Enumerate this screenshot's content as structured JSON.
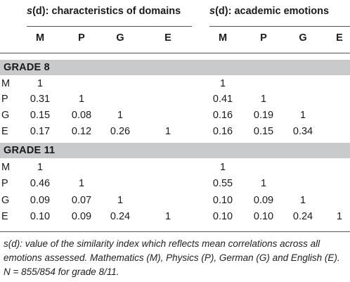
{
  "header": {
    "group1_prefix": "s",
    "group1_rest": "(d): characteristics of domains",
    "group2_prefix": "s",
    "group2_rest": "(d): academic emotions",
    "columns": [
      "M",
      "P",
      "G",
      "E"
    ]
  },
  "sections": [
    {
      "label": "GRADE 8",
      "rows": [
        {
          "label": "M",
          "a": [
            "1",
            "",
            "",
            ""
          ],
          "b": [
            "1",
            "",
            "",
            ""
          ]
        },
        {
          "label": "P",
          "a": [
            "0.31",
            "1",
            "",
            ""
          ],
          "b": [
            "0.41",
            "1",
            "",
            ""
          ]
        },
        {
          "label": "G",
          "a": [
            "0.15",
            "0.08",
            "1",
            ""
          ],
          "b": [
            "0.16",
            "0.19",
            "1",
            ""
          ]
        },
        {
          "label": "E",
          "a": [
            "0.17",
            "0.12",
            "0.26",
            "1"
          ],
          "b": [
            "0.16",
            "0.15",
            "0.34",
            ""
          ]
        }
      ]
    },
    {
      "label": "GRADE 11",
      "rows": [
        {
          "label": "M",
          "a": [
            "1",
            "",
            "",
            ""
          ],
          "b": [
            "1",
            "",
            "",
            ""
          ]
        },
        {
          "label": "P",
          "a": [
            "0.46",
            "1",
            "",
            ""
          ],
          "b": [
            "0.55",
            "1",
            "",
            ""
          ]
        },
        {
          "label": "G",
          "a": [
            "0.09",
            "0.07",
            "1",
            ""
          ],
          "b": [
            "0.10",
            "0.09",
            "1",
            ""
          ]
        },
        {
          "label": "E",
          "a": [
            "0.10",
            "0.09",
            "0.24",
            "1"
          ],
          "b": [
            "0.10",
            "0.10",
            "0.24",
            "1"
          ]
        }
      ]
    }
  ],
  "footnote": {
    "line1": "s(d): value of the similarity index which reflects mean correlations across all",
    "line2": "emotions assessed. Mathematics (M), Physics (P), German (G) and English (E).",
    "line3": "N = 855/854 for grade 8/11."
  }
}
